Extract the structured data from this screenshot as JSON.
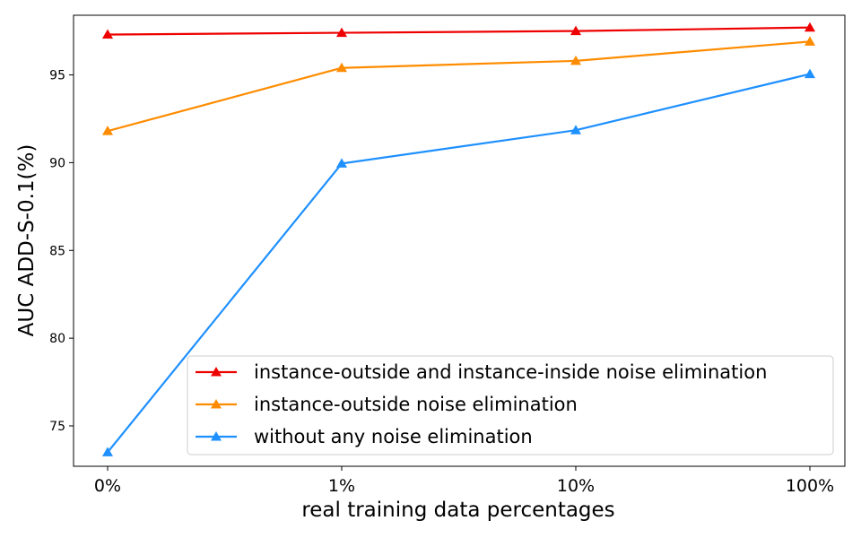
{
  "chart_data": {
    "type": "line",
    "title": "",
    "xlabel": "real training data percentages",
    "ylabel": "AUC ADD-S-0.1(%)",
    "categories": [
      "0%",
      "1%",
      "10%",
      "100%"
    ],
    "ylim": [
      72.7,
      98.4
    ],
    "yticks": [
      75,
      80,
      85,
      90,
      95
    ],
    "grid": false,
    "legend_position": "lower-right",
    "series": [
      {
        "name": "instance-outside and instance-inside noise elimination",
        "color": "#ee0000",
        "marker": "triangle",
        "values": [
          97.3,
          97.4,
          97.5,
          97.7
        ]
      },
      {
        "name": "instance-outside noise elimination",
        "color": "#ff8c00",
        "marker": "triangle",
        "values": [
          91.8,
          95.4,
          95.8,
          96.9
        ]
      },
      {
        "name": "without any noise elimination",
        "color": "#1e90ff",
        "marker": "triangle",
        "values": [
          73.5,
          89.95,
          91.85,
          95.05
        ]
      }
    ]
  }
}
